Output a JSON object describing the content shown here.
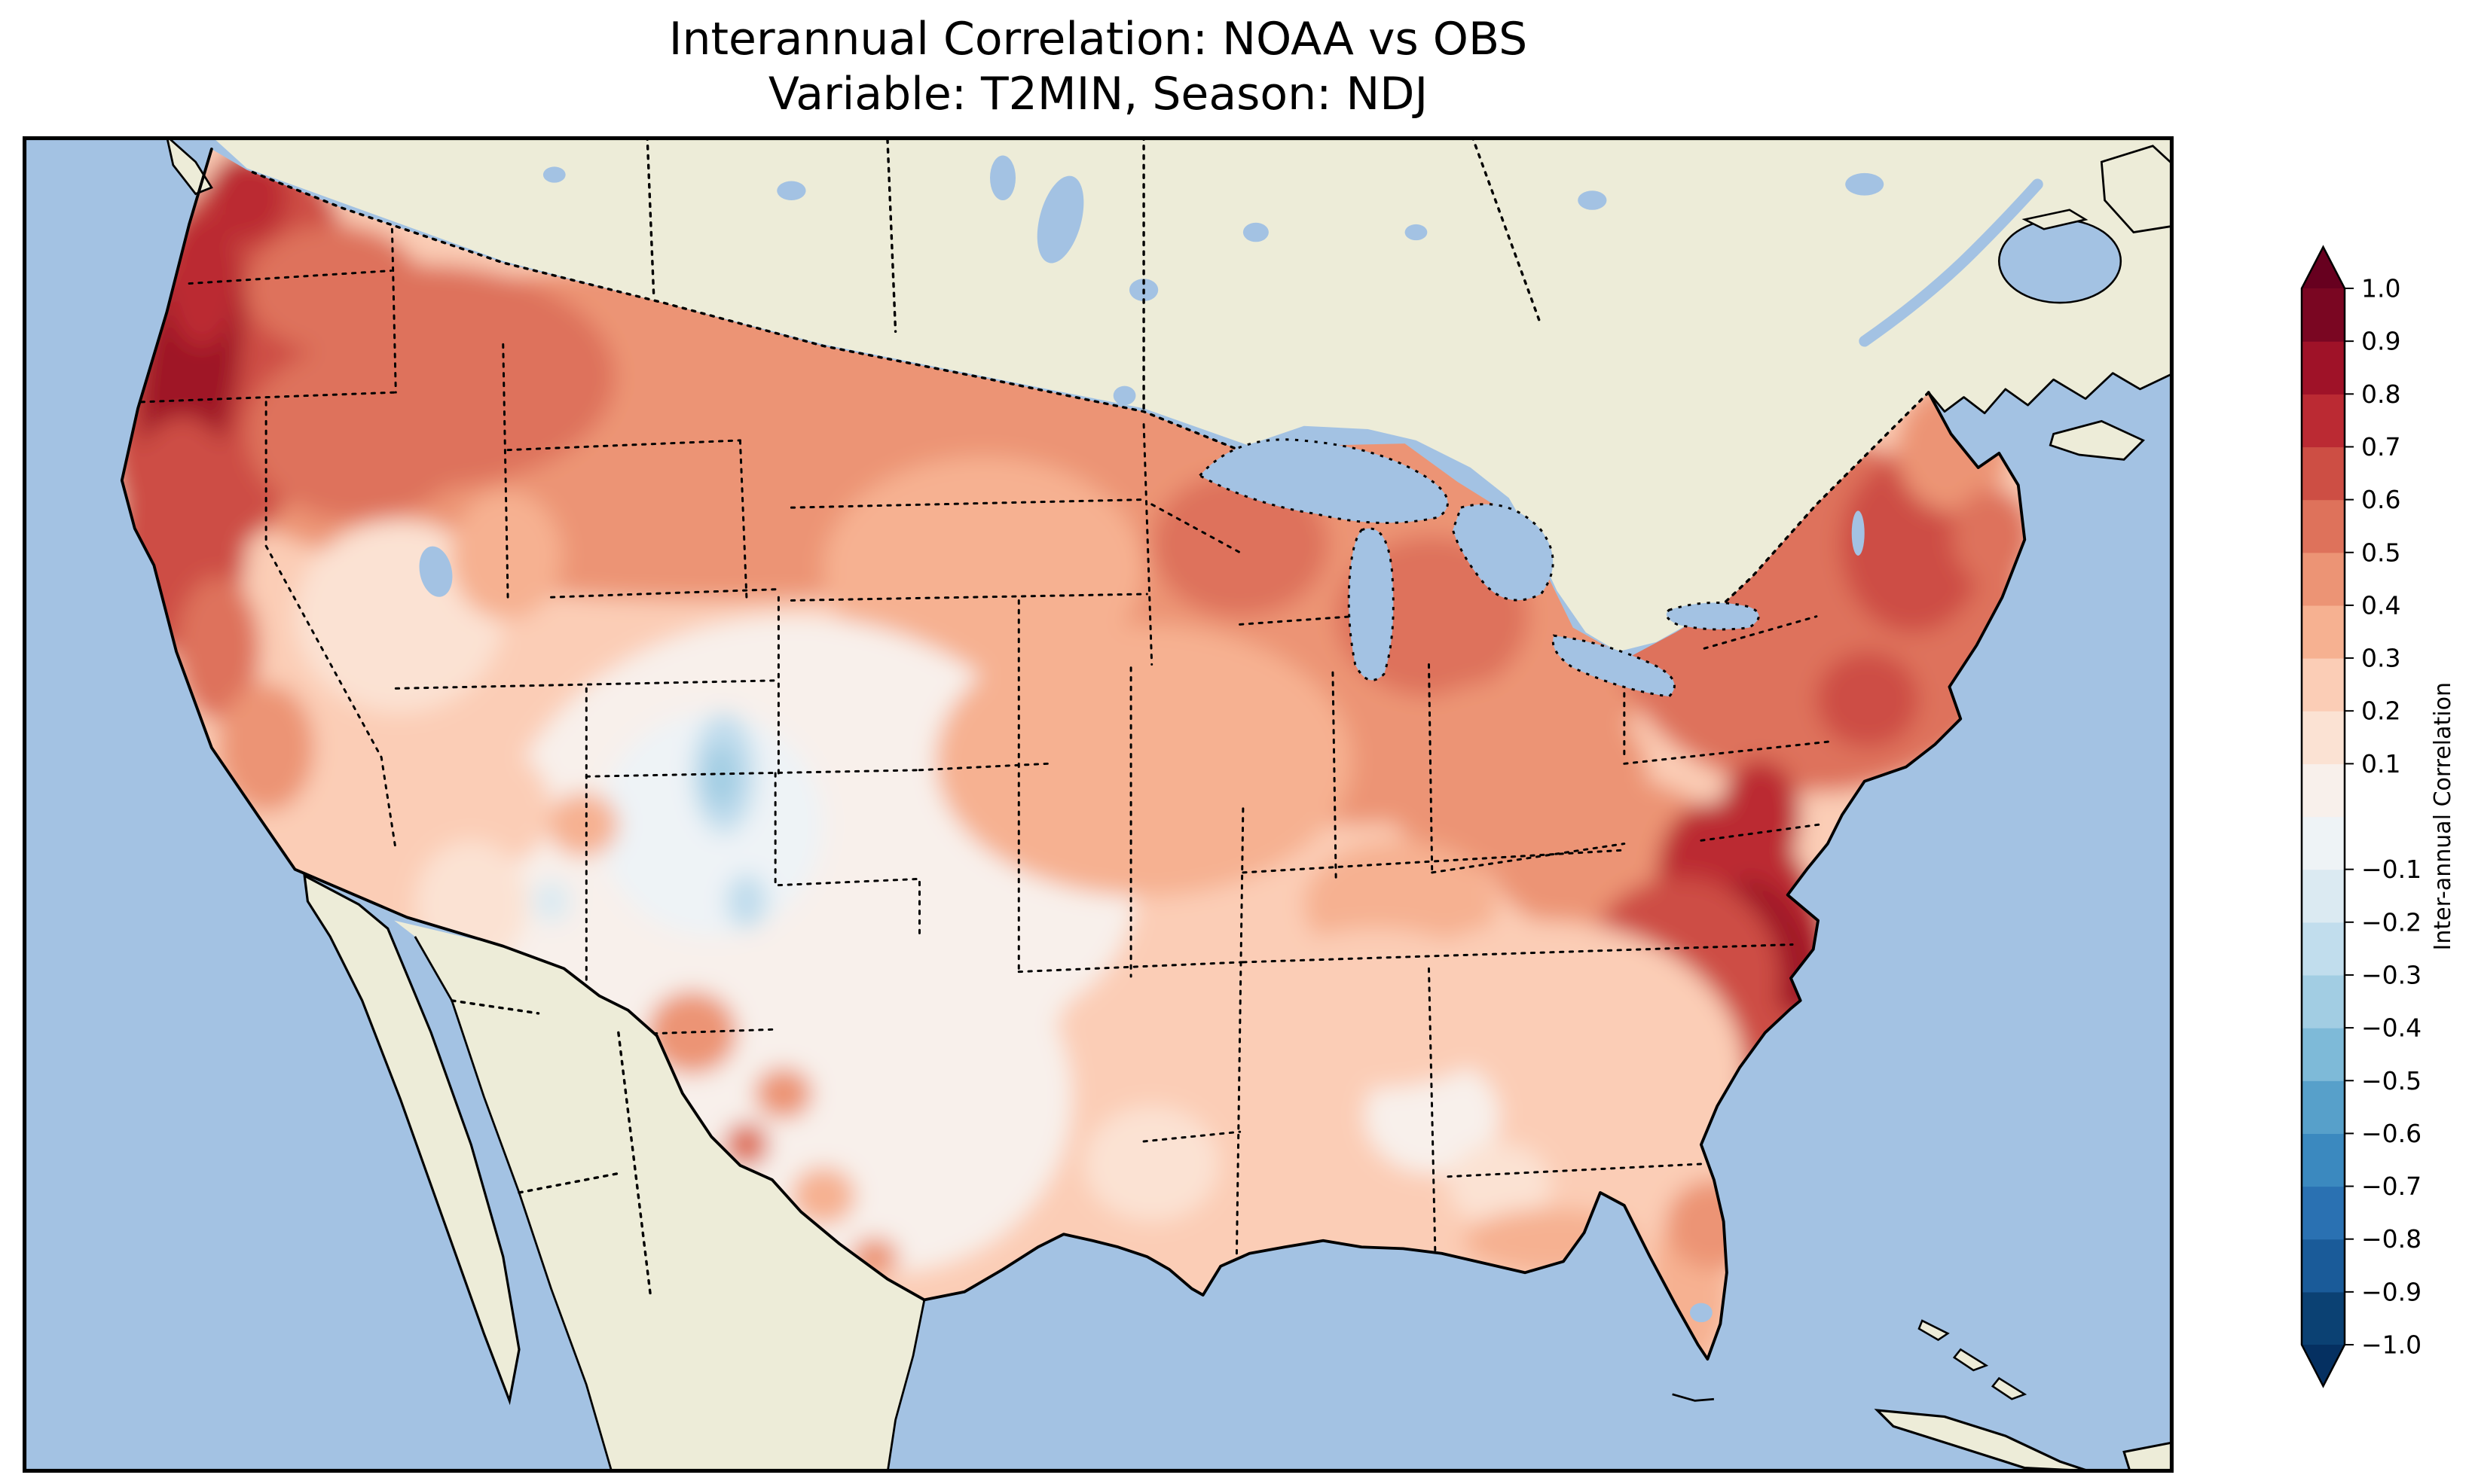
{
  "figure": {
    "title_line1": "Interannual Correlation: NOAA vs OBS",
    "title_line2": "Variable: T2MIN, Season: NDJ"
  },
  "map": {
    "ocean_color": "#a3c2e3",
    "land_color": "#edecd8",
    "frame_color": "#000000"
  },
  "colorbar": {
    "label": "Inter-annual Correlation",
    "over_color": "#67001f",
    "under_color": "#053061",
    "segment_colors": [
      "#0b4173",
      "#1a5b99",
      "#2a71b2",
      "#3b89bf",
      "#57a0ca",
      "#7ebad8",
      "#a2cde3",
      "#c1dded",
      "#dbeaf2",
      "#eef3f6",
      "#f8f0eb",
      "#fbe2d3",
      "#fbcdb6",
      "#f6b191",
      "#ec9475",
      "#de725b",
      "#cd4e44",
      "#bb2a33",
      "#9f1228",
      "#7a0622"
    ],
    "ticks": [
      {
        "label": "1.0",
        "value": 1.0
      },
      {
        "label": "0.9",
        "value": 0.9
      },
      {
        "label": "0.8",
        "value": 0.8
      },
      {
        "label": "0.7",
        "value": 0.7
      },
      {
        "label": "0.6",
        "value": 0.6
      },
      {
        "label": "0.5",
        "value": 0.5
      },
      {
        "label": "0.4",
        "value": 0.4
      },
      {
        "label": "0.3",
        "value": 0.3
      },
      {
        "label": "0.2",
        "value": 0.2
      },
      {
        "label": "0.1",
        "value": 0.1
      },
      {
        "label": "−0.1",
        "value": -0.1
      },
      {
        "label": "−0.2",
        "value": -0.2
      },
      {
        "label": "−0.3",
        "value": -0.3
      },
      {
        "label": "−0.4",
        "value": -0.4
      },
      {
        "label": "−0.5",
        "value": -0.5
      },
      {
        "label": "−0.6",
        "value": -0.6
      },
      {
        "label": "−0.7",
        "value": -0.7
      },
      {
        "label": "−0.8",
        "value": -0.8
      },
      {
        "label": "−0.9",
        "value": -0.9
      },
      {
        "label": "−1.0",
        "value": -1.0
      }
    ]
  },
  "chart_data": {
    "type": "heatmap",
    "title": "Interannual Correlation: NOAA vs OBS",
    "subtitle": "Variable: T2MIN, Season: NDJ",
    "variable": "T2MIN",
    "season": "NDJ",
    "datasets_compared": [
      "NOAA",
      "OBS"
    ],
    "colorbar_label": "Inter-annual Correlation",
    "colormap": "RdBu_r",
    "value_range": [
      -1.0,
      1.0
    ],
    "contour_interval": 0.1,
    "levels": [
      -1.0,
      -0.9,
      -0.8,
      -0.7,
      -0.6,
      -0.5,
      -0.4,
      -0.3,
      -0.2,
      -0.1,
      0.0,
      0.1,
      0.2,
      0.3,
      0.4,
      0.5,
      0.6,
      0.7,
      0.8,
      0.9,
      1.0
    ],
    "region": "Contiguous United States (filled contours over US only; Canada and Mexico unshaded land)",
    "legend_position": "right vertical colorbar with pointed over/under extensions",
    "regions": [
      {
        "name": "Pacific Northwest coast (W Washington / W Oregon)",
        "approx_correlation": 0.8
      },
      {
        "name": "Eastern Washington / Idaho",
        "approx_correlation": 0.55
      },
      {
        "name": "Northern California coast / Sierra",
        "approx_correlation": 0.65
      },
      {
        "name": "Southern California",
        "approx_correlation": 0.45
      },
      {
        "name": "Nevada / Great Basin",
        "approx_correlation": 0.2
      },
      {
        "name": "Northern Plains (MT, ND, MN)",
        "approx_correlation": 0.5
      },
      {
        "name": "Central Plains (NE, KS, E Colorado)",
        "approx_correlation": 0.05
      },
      {
        "name": "Colorado / Nebraska blue patch",
        "approx_correlation": -0.25
      },
      {
        "name": "New Mexico / West Texas (scattered red spots)",
        "approx_correlation": 0.3
      },
      {
        "name": "Central Texas",
        "approx_correlation": 0.0
      },
      {
        "name": "Central Texas small blue spot",
        "approx_correlation": -0.2
      },
      {
        "name": "Upper Midwest (WI, MI, IA, IL)",
        "approx_correlation": 0.5
      },
      {
        "name": "Ohio Valley / Appalachians",
        "approx_correlation": 0.45
      },
      {
        "name": "Northeast (NY, New England)",
        "approx_correlation": 0.6
      },
      {
        "name": "Mid-Atlantic coast (E Virginia / E North Carolina)",
        "approx_correlation": 0.85
      },
      {
        "name": "Southeast interior (GA, AL, MS)",
        "approx_correlation": 0.25
      },
      {
        "name": "Gulf Coast / Louisiana",
        "approx_correlation": 0.2
      },
      {
        "name": "Florida peninsula",
        "approx_correlation": 0.3
      }
    ]
  }
}
